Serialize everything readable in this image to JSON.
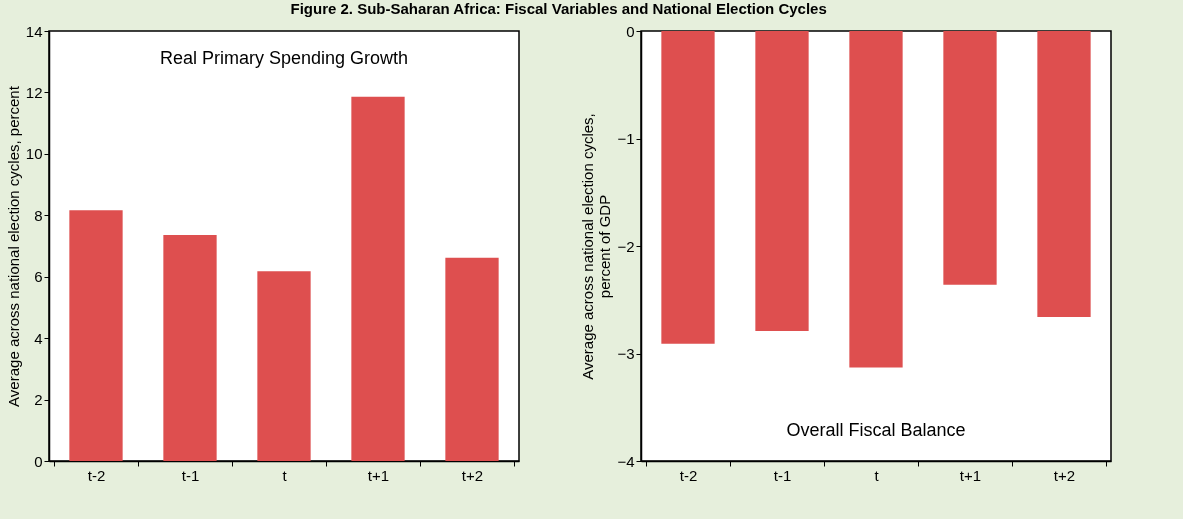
{
  "chart_data": [
    {
      "type": "bar",
      "title": "Figure 2. Sub-Saharan Africa: Fiscal Variables and National Election Cycles",
      "annotations": [
        "Real Primary Spending Growth"
      ],
      "ylabel": "Average across national election cycles,  percent",
      "categories": [
        "t-2",
        "t-1",
        "t",
        "t+1",
        "t+2"
      ],
      "values": [
        8.16,
        7.36,
        6.18,
        11.86,
        6.62
      ],
      "color": "#de4f4f",
      "ylim": [
        0,
        14
      ],
      "yticks": [
        0,
        2,
        4,
        6,
        8,
        10,
        12,
        14
      ]
    },
    {
      "type": "bar",
      "annotations": [
        "Overall Fiscal Balance"
      ],
      "ylabel": "Average across national  election  cycles,\npercent of GDP",
      "categories": [
        "t-2",
        "t-1",
        "t",
        "t+1",
        "t+2"
      ],
      "values": [
        -2.91,
        -2.79,
        -3.13,
        -2.36,
        -2.66
      ],
      "color": "#de4f4f",
      "ylim": [
        -4,
        0
      ],
      "yticks": [
        -4,
        -3,
        -2,
        -1,
        0
      ]
    }
  ]
}
